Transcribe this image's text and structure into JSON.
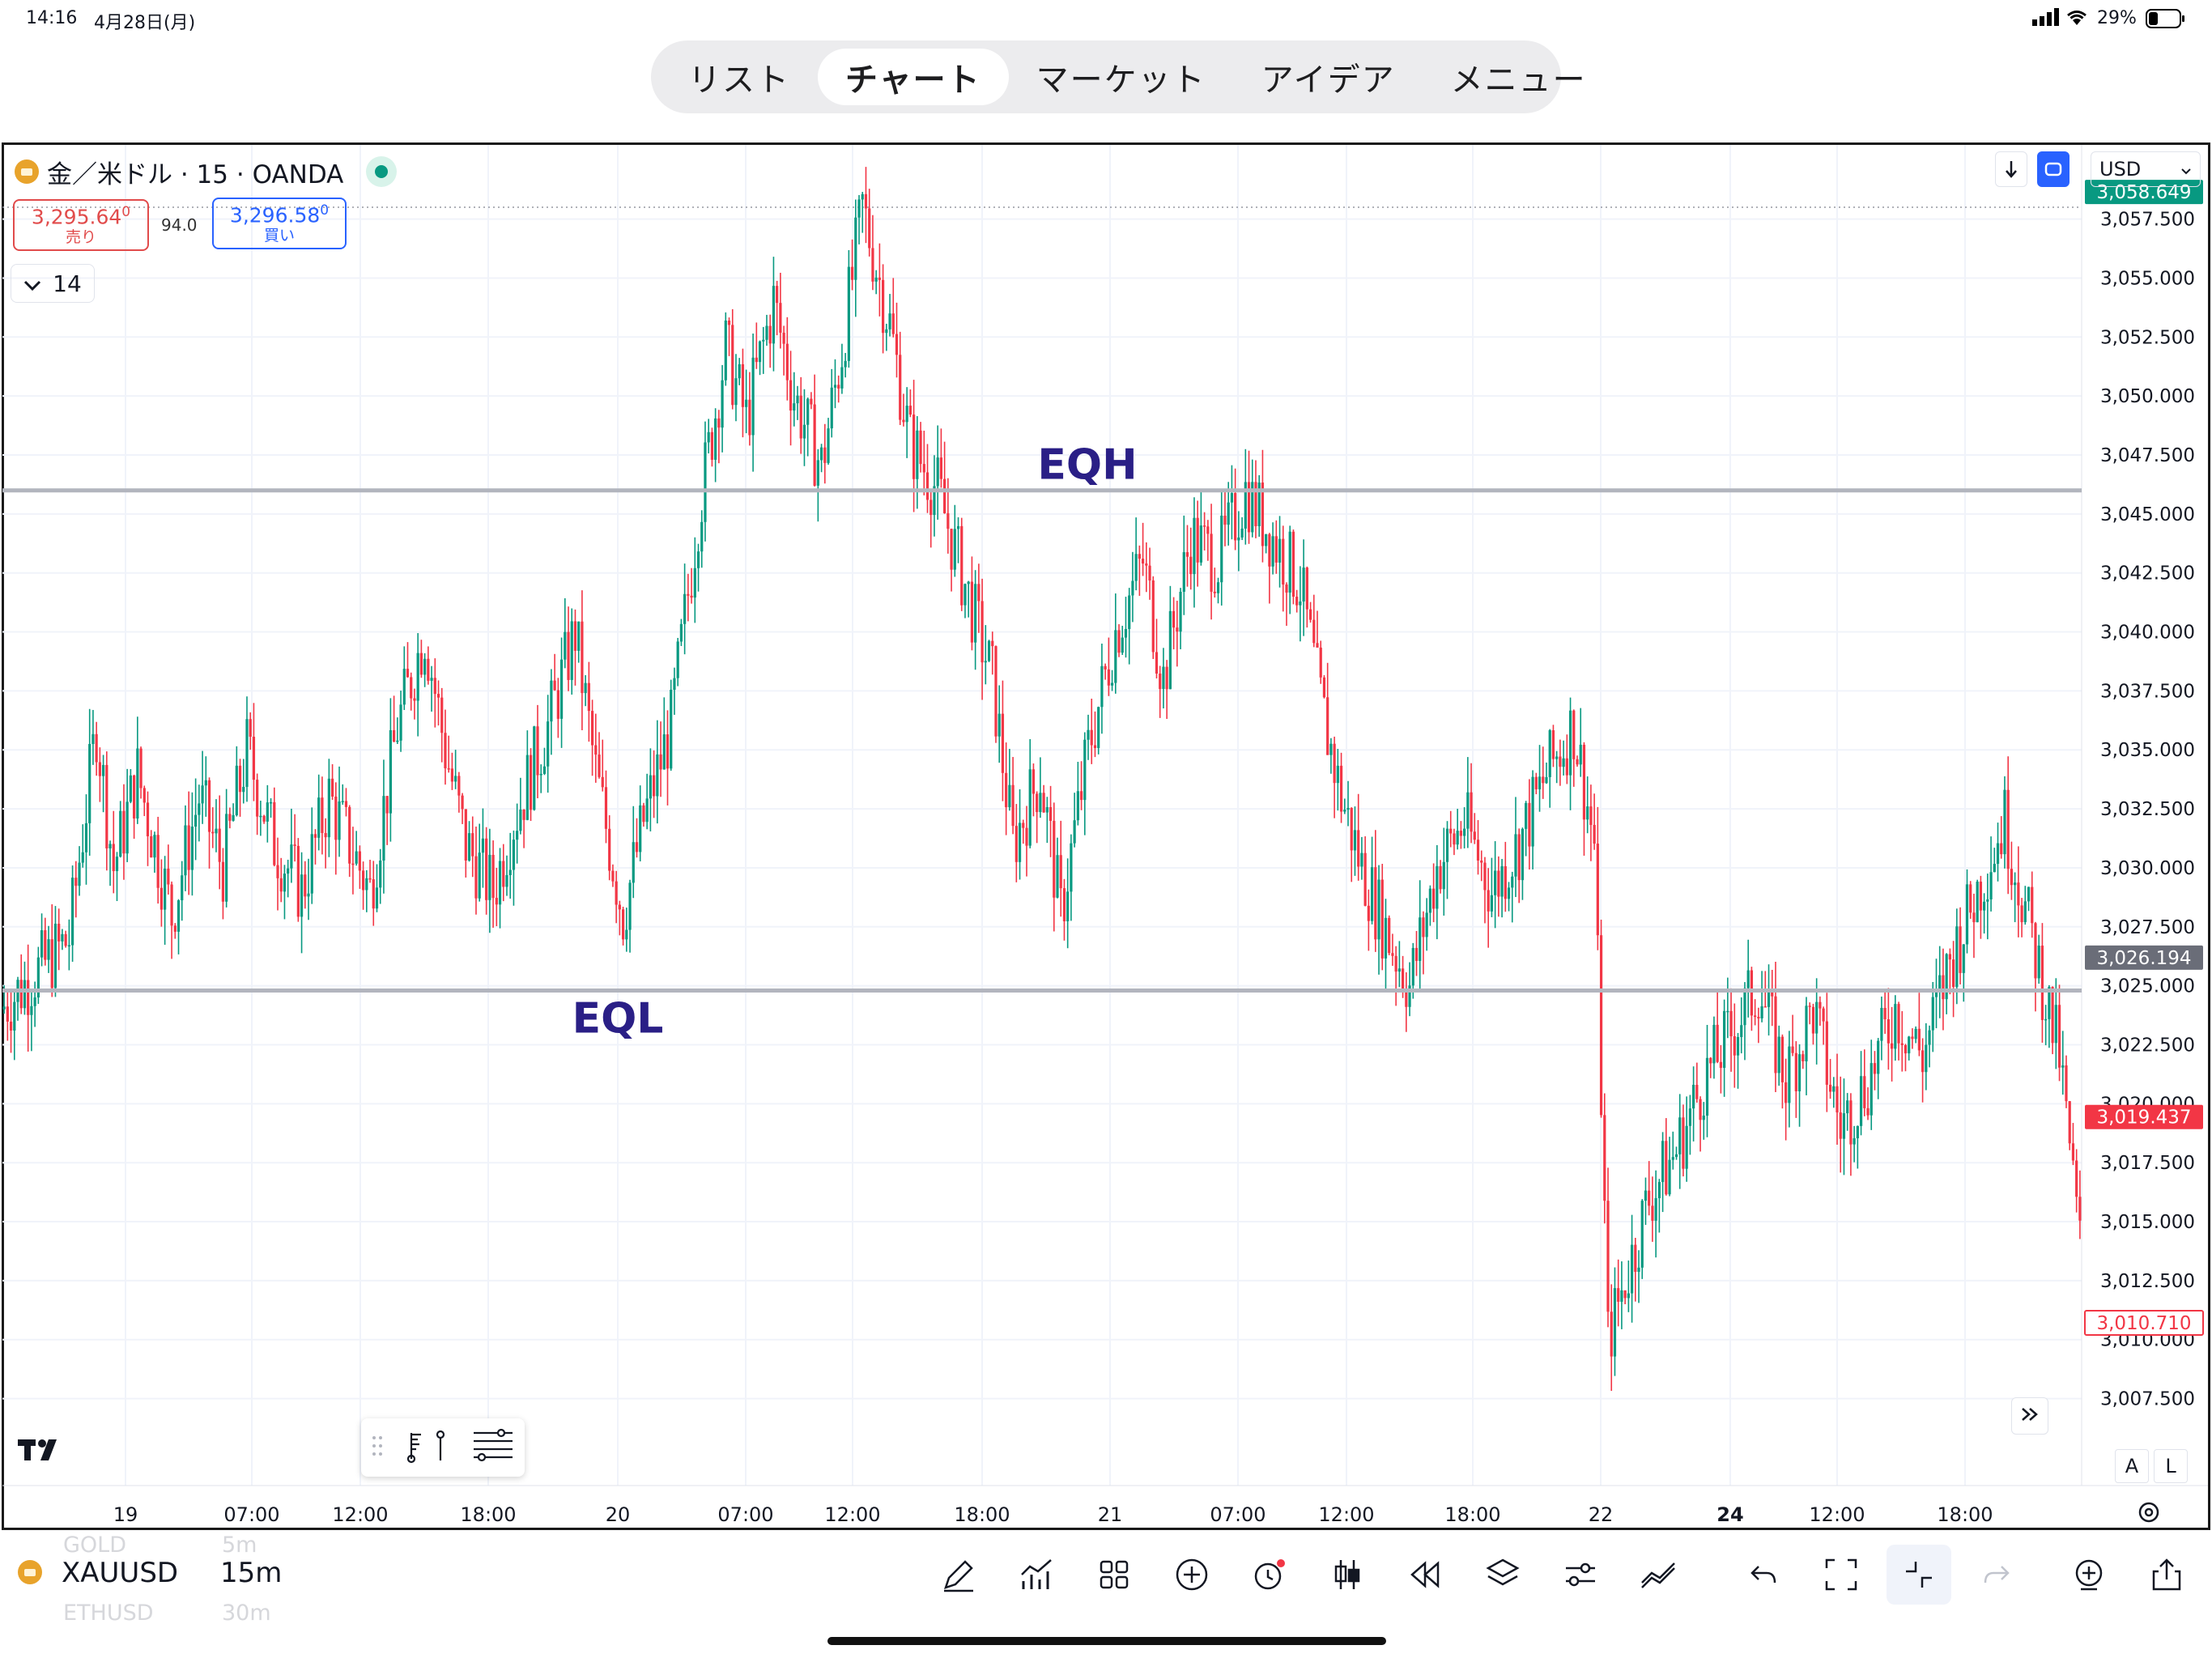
{
  "status_bar": {
    "time": "14:16",
    "date": "4月28日(月)",
    "battery": "29%"
  },
  "tabs": [
    {
      "label": "リスト",
      "active": false
    },
    {
      "label": "チャート",
      "active": true
    },
    {
      "label": "マーケット",
      "active": false
    },
    {
      "label": "アイデア",
      "active": false
    },
    {
      "label": "メニュー",
      "active": false
    }
  ],
  "chart_header": {
    "symbol_title": "金／米ドル · 15 · OANDA",
    "sell_price": "3,295.64",
    "sell_price_small": "0",
    "sell_label": "売り",
    "spread": "94.0",
    "buy_price": "3,296.58",
    "buy_price_small": "0",
    "buy_label": "買い",
    "indicator_count": "14",
    "currency": "USD"
  },
  "chart_data": {
    "type": "candlestick",
    "symbol": "XAUUSD",
    "interval": "15m",
    "y_axis_ticks": [
      "3,057.500",
      "3,055.000",
      "3,052.500",
      "3,050.000",
      "3,047.500",
      "3,045.000",
      "3,042.500",
      "3,040.000",
      "3,037.500",
      "3,035.000",
      "3,032.500",
      "3,030.000",
      "3,027.500",
      "3,025.000",
      "3,022.500",
      "3,020.000",
      "3,017.500",
      "3,015.000",
      "3,012.500",
      "3,010.000",
      "3,007.500"
    ],
    "y_axis_values": [
      3057.5,
      3055,
      3052.5,
      3050,
      3047.5,
      3045,
      3042.5,
      3040,
      3037.5,
      3035,
      3032.5,
      3030,
      3027.5,
      3025,
      3022.5,
      3020,
      3017.5,
      3015,
      3012.5,
      3010,
      3007.5
    ],
    "ylim": [
      3006.2,
      3060.3
    ],
    "x_axis_ticks": [
      "19",
      "07:00",
      "12:00",
      "18:00",
      "20",
      "07:00",
      "12:00",
      "18:00",
      "21",
      "07:00",
      "12:00",
      "18:00",
      "22",
      "24",
      "12:00",
      "18:00"
    ],
    "price_tags": [
      {
        "label": "3,058.649",
        "value": 3058.649,
        "color": "#089981"
      },
      {
        "label": "3,026.194",
        "value": 3026.194,
        "color": "#6a6d78"
      },
      {
        "label": "3,019.437",
        "value": 3019.437,
        "color": "#f23645"
      },
      {
        "label": "3,010.710",
        "value": 3010.71,
        "color": "#f23645",
        "outline": true
      }
    ],
    "levels": [
      {
        "name": "EQH",
        "value": 3046.0
      },
      {
        "name": "EQL",
        "value": 3024.8
      }
    ],
    "up_color": "#089981",
    "down_color": "#f23645",
    "price_path": [
      [
        0,
        3024
      ],
      [
        20,
        3027
      ],
      [
        28,
        3036
      ],
      [
        33,
        3030
      ],
      [
        40,
        3034
      ],
      [
        50,
        3028
      ],
      [
        58,
        3033
      ],
      [
        65,
        3030
      ],
      [
        72,
        3035
      ],
      [
        80,
        3031
      ],
      [
        88,
        3029
      ],
      [
        96,
        3033
      ],
      [
        102,
        3031
      ],
      [
        108,
        3029
      ],
      [
        116,
        3036
      ],
      [
        124,
        3040
      ],
      [
        130,
        3035
      ],
      [
        136,
        3031
      ],
      [
        144,
        3029
      ],
      [
        150,
        3032
      ],
      [
        160,
        3036
      ],
      [
        168,
        3040
      ],
      [
        174,
        3034
      ],
      [
        182,
        3028
      ],
      [
        188,
        3032
      ],
      [
        196,
        3036
      ],
      [
        204,
        3045
      ],
      [
        212,
        3052
      ],
      [
        218,
        3049
      ],
      [
        226,
        3054
      ],
      [
        232,
        3050
      ],
      [
        240,
        3047
      ],
      [
        246,
        3052
      ],
      [
        252,
        3058
      ],
      [
        260,
        3053
      ],
      [
        266,
        3048
      ],
      [
        274,
        3046
      ],
      [
        282,
        3042
      ],
      [
        290,
        3038
      ],
      [
        296,
        3031
      ],
      [
        304,
        3034
      ],
      [
        310,
        3028
      ],
      [
        318,
        3035
      ],
      [
        326,
        3040
      ],
      [
        334,
        3043
      ],
      [
        340,
        3038
      ],
      [
        348,
        3044
      ],
      [
        356,
        3043
      ],
      [
        364,
        3046
      ],
      [
        372,
        3044
      ],
      [
        380,
        3042
      ],
      [
        386,
        3037
      ],
      [
        392,
        3033
      ],
      [
        398,
        3030
      ],
      [
        406,
        3027
      ],
      [
        412,
        3025
      ],
      [
        420,
        3030
      ],
      [
        428,
        3032
      ],
      [
        436,
        3029
      ],
      [
        444,
        3031
      ],
      [
        452,
        3034
      ],
      [
        460,
        3036
      ],
      [
        466,
        3031
      ],
      [
        470,
        3010
      ],
      [
        476,
        3013
      ],
      [
        482,
        3016
      ],
      [
        490,
        3018
      ],
      [
        498,
        3021
      ],
      [
        506,
        3023
      ],
      [
        514,
        3025
      ],
      [
        522,
        3021
      ],
      [
        530,
        3024
      ],
      [
        538,
        3019
      ],
      [
        546,
        3021
      ],
      [
        554,
        3024
      ],
      [
        562,
        3022
      ],
      [
        570,
        3026
      ],
      [
        578,
        3029
      ],
      [
        586,
        3032
      ],
      [
        594,
        3027
      ],
      [
        602,
        3022
      ],
      [
        608,
        3014
      ]
    ]
  },
  "drawing_toolbar": {
    "items": [
      "drag-handle",
      "favorite-tools",
      "object-tree"
    ]
  },
  "bottom_bar": {
    "symbol": "XAUUSD",
    "interval": "15m",
    "ghost_prev_symbol": "GOLD",
    "ghost_prev_interval": "5m",
    "ghost_next_symbol": "ETHUSD",
    "ghost_next_interval": "30m"
  },
  "auto_button": "A",
  "log_button": "L"
}
